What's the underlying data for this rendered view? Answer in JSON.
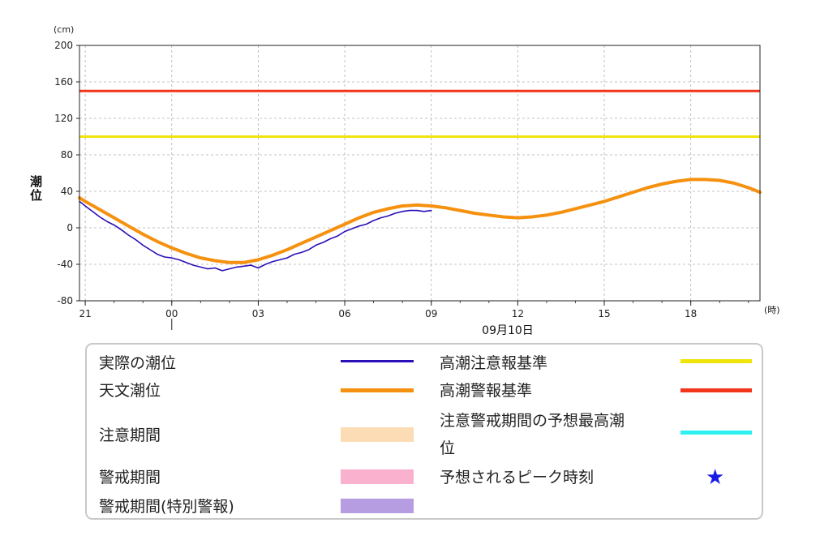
{
  "chart_data": {
    "type": "line",
    "y_unit": "(cm)",
    "x_unit": "(時)",
    "ylabel": "潮位",
    "ylim": [
      -80,
      200
    ],
    "yticks": [
      -80,
      -40,
      0,
      40,
      80,
      120,
      160,
      200
    ],
    "xlim": [
      20.8,
      44.4
    ],
    "xticks": [
      {
        "x": 21,
        "label": "21"
      },
      {
        "x": 24,
        "label": "00"
      },
      {
        "x": 27,
        "label": "03"
      },
      {
        "x": 30,
        "label": "06"
      },
      {
        "x": 33,
        "label": "09"
      },
      {
        "x": 36,
        "label": "12"
      },
      {
        "x": 39,
        "label": "15"
      },
      {
        "x": 42,
        "label": "18"
      }
    ],
    "date_marker_x": 24,
    "date_label": "09月10日",
    "grid": true,
    "series": [
      {
        "name": "実際の潮位",
        "color": "#2a10b8",
        "x": [
          20.8,
          21.0,
          21.25,
          21.5,
          21.75,
          22.0,
          22.25,
          22.5,
          22.75,
          23.0,
          23.25,
          23.5,
          23.75,
          24.0,
          24.25,
          24.5,
          24.75,
          25.0,
          25.25,
          25.5,
          25.75,
          26.0,
          26.25,
          26.5,
          26.75,
          27.0,
          27.25,
          27.5,
          27.75,
          28.0,
          28.25,
          28.5,
          28.75,
          29.0,
          29.25,
          29.5,
          29.75,
          30.0,
          30.25,
          30.5,
          30.75,
          31.0,
          31.25,
          31.5,
          31.75,
          32.0,
          32.25,
          32.5,
          32.75,
          33.0
        ],
        "y": [
          29,
          24,
          18,
          12,
          7,
          3,
          -2,
          -8,
          -13,
          -19,
          -24,
          -29,
          -32,
          -33,
          -35,
          -38,
          -41,
          -43,
          -45,
          -44,
          -47,
          -45,
          -43,
          -42,
          -41,
          -44,
          -40,
          -37,
          -35,
          -33,
          -29,
          -27,
          -24,
          -19,
          -16,
          -12,
          -9,
          -4,
          -1,
          2,
          4,
          8,
          11,
          13,
          16,
          18,
          19,
          19,
          18,
          19
        ]
      },
      {
        "name": "天文潮位",
        "color": "#f5910f",
        "x": [
          20.8,
          21.0,
          21.5,
          22.0,
          22.5,
          23.0,
          23.5,
          24.0,
          24.5,
          25.0,
          25.5,
          26.0,
          26.5,
          27.0,
          27.5,
          28.0,
          28.5,
          29.0,
          29.5,
          30.0,
          30.5,
          31.0,
          31.5,
          32.0,
          32.5,
          33.0,
          33.5,
          34.0,
          34.5,
          35.0,
          35.5,
          36.0,
          36.5,
          37.0,
          37.5,
          38.0,
          38.5,
          39.0,
          39.5,
          40.0,
          40.5,
          41.0,
          41.5,
          42.0,
          42.5,
          43.0,
          43.5,
          44.0,
          44.4
        ],
        "y": [
          33,
          29,
          20,
          11,
          2,
          -7,
          -15,
          -22,
          -28,
          -33,
          -36,
          -38,
          -38,
          -35,
          -30,
          -24,
          -17,
          -10,
          -3,
          4,
          11,
          17,
          21,
          24,
          25,
          24,
          22,
          19,
          16,
          14,
          12,
          11,
          12,
          14,
          17,
          21,
          25,
          29,
          34,
          39,
          44,
          48,
          51,
          53,
          53,
          52,
          49,
          44,
          39
        ]
      }
    ],
    "reference_lines": [
      {
        "name": "高潮注意報基準",
        "value": 100,
        "color": "#f0e40a"
      },
      {
        "name": "高潮警報基準",
        "value": 150,
        "color": "#f2361b"
      }
    ]
  },
  "legend": {
    "items": [
      {
        "label": "実際の潮位",
        "kind": "line",
        "color": "#2a10b8"
      },
      {
        "label": "天文潮位",
        "kind": "line",
        "color": "#f5910f"
      },
      {
        "label": "注意期間",
        "kind": "band",
        "color": "#fcdcb4"
      },
      {
        "label": "警戒期間",
        "kind": "band",
        "color": "#f9b1cd"
      },
      {
        "label": "警戒期間(特別警報)",
        "kind": "band",
        "color": "#b69ce0"
      },
      {
        "label": "高潮注意報基準",
        "kind": "line",
        "color": "#f0e40a"
      },
      {
        "label": "高潮警報基準",
        "kind": "line",
        "color": "#f2361b"
      },
      {
        "label": "注意警戒期間の予想最高潮位",
        "label_line1": "注意警戒期間の予想最高潮",
        "label_line2": "位",
        "kind": "line",
        "color": "#2ff0f0"
      },
      {
        "label": "予想されるピーク時刻",
        "kind": "star",
        "color": "#1a1ae6",
        "symbol": "★"
      }
    ]
  }
}
